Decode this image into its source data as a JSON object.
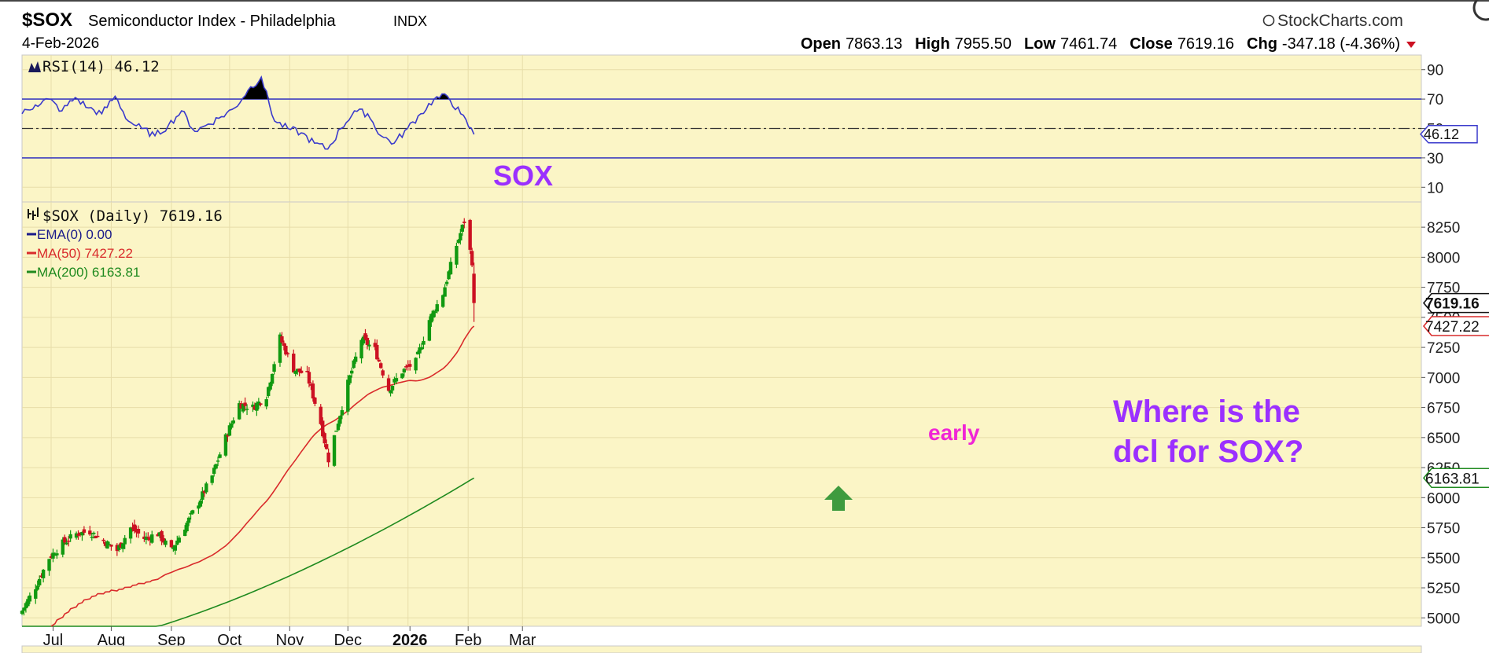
{
  "header": {
    "symbol": "$SOX",
    "name": "Semiconductor Index - Philadelphia",
    "exchange": "INDX",
    "date": "4-Feb-2026",
    "brand": "StockCharts.com",
    "open_label": "Open",
    "open": "7863.13",
    "high_label": "High",
    "high": "7955.50",
    "low_label": "Low",
    "low": "7461.74",
    "close_label": "Close",
    "close": "7619.16",
    "chg_label": "Chg",
    "chg": "-347.18 (-4.36%)"
  },
  "colors": {
    "panel_bg": "#FBF5C6",
    "up": "#119911",
    "down": "#CC1122",
    "ma50": "#D92B2B",
    "ma200": "#1F8A1F",
    "rsi_line": "#3A3ACC",
    "annotation": "#9B30FF",
    "early": "#F025D6",
    "arrow": "#3E9B3E"
  },
  "rsi_panel": {
    "legend": "RSI(14) 46.12",
    "current": "46.12",
    "levels": [
      70,
      30
    ],
    "label": "SOX",
    "ticks": [
      "90",
      "70",
      "50",
      "30",
      "10"
    ],
    "tick_values": [
      90,
      70,
      50,
      30,
      10
    ]
  },
  "price_panel": {
    "legend_main": "$SOX (Daily) 7619.16",
    "legend_ema": "EMA(0) 0.00",
    "legend_ma50": "MA(50) 7427.22",
    "legend_ma200": "MA(200) 6163.81",
    "tag_close": "7619.16",
    "tag_ma50": "7427.22",
    "tag_ma200": "6163.81",
    "ticks": [
      "8250",
      "8000",
      "7750",
      "7500",
      "7250",
      "7000",
      "6750",
      "6500",
      "6250",
      "6000",
      "5750",
      "5500",
      "5250",
      "5000"
    ],
    "tick_values": [
      8250,
      8000,
      7750,
      7500,
      7250,
      7000,
      6750,
      6500,
      6250,
      6000,
      5750,
      5500,
      5250,
      5000
    ],
    "annotation_question_line1": "Where is the",
    "annotation_question_line2": "dcl for SOX?",
    "annotation_early": "early"
  },
  "x_axis": {
    "labels": [
      "Jul",
      "Aug",
      "Sep",
      "Oct",
      "Nov",
      "Dec",
      "2026",
      "Feb",
      "Mar"
    ],
    "bold_label": "2026"
  },
  "chart_data": {
    "type": "candlestick",
    "title": "$SOX Semiconductor Index - Philadelphia INDX",
    "interval": "Daily",
    "ylim": [
      4930,
      8460
    ],
    "rsi_ylim": [
      0,
      100
    ],
    "anchors": [
      {
        "date": "2025-06-16",
        "close": 5060
      },
      {
        "date": "2025-06-23",
        "close": 5260
      },
      {
        "date": "2025-06-30",
        "close": 5500
      },
      {
        "date": "2025-07-07",
        "close": 5620
      },
      {
        "date": "2025-07-14",
        "close": 5700
      },
      {
        "date": "2025-07-21",
        "close": 5720
      },
      {
        "date": "2025-07-28",
        "close": 5640
      },
      {
        "date": "2025-08-04",
        "close": 5560
      },
      {
        "date": "2025-08-11",
        "close": 5750
      },
      {
        "date": "2025-08-18",
        "close": 5660
      },
      {
        "date": "2025-08-25",
        "close": 5700
      },
      {
        "date": "2025-09-01",
        "close": 5560
      },
      {
        "date": "2025-09-08",
        "close": 5760
      },
      {
        "date": "2025-09-15",
        "close": 5960
      },
      {
        "date": "2025-09-22",
        "close": 6180
      },
      {
        "date": "2025-09-29",
        "close": 6500
      },
      {
        "date": "2025-10-06",
        "close": 6780
      },
      {
        "date": "2025-10-13",
        "close": 6750
      },
      {
        "date": "2025-10-20",
        "close": 6850
      },
      {
        "date": "2025-10-27",
        "close": 7330
      },
      {
        "date": "2025-11-03",
        "close": 7070
      },
      {
        "date": "2025-11-10",
        "close": 7020
      },
      {
        "date": "2025-11-17",
        "close": 6620
      },
      {
        "date": "2025-11-21",
        "close": 6320
      },
      {
        "date": "2025-12-01",
        "close": 6950
      },
      {
        "date": "2025-12-08",
        "close": 7320
      },
      {
        "date": "2025-12-15",
        "close": 7230
      },
      {
        "date": "2025-12-22",
        "close": 6900
      },
      {
        "date": "2025-12-29",
        "close": 7050
      },
      {
        "date": "2026-01-05",
        "close": 7130
      },
      {
        "date": "2026-01-12",
        "close": 7480
      },
      {
        "date": "2026-01-19",
        "close": 7700
      },
      {
        "date": "2026-01-26",
        "close": 8100
      },
      {
        "date": "2026-01-30",
        "close": 8300
      },
      {
        "date": "2026-02-03",
        "close": 7966
      },
      {
        "date": "2026-02-04",
        "close": 7619.16
      }
    ],
    "last_bar": {
      "date": "2026-02-04",
      "open": 7863.13,
      "high": 7955.5,
      "low": 7461.74,
      "close": 7619.16
    },
    "series": [
      {
        "name": "$SOX (Daily)",
        "last": 7619.16
      },
      {
        "name": "MA(50)",
        "last": 7427.22,
        "start_date": "2025-07-01",
        "start_value": 4930
      },
      {
        "name": "MA(200)",
        "last": 6163.81,
        "start_date": "2025-06-16",
        "start_value": 4700
      },
      {
        "name": "RSI(14)",
        "last": 46.12,
        "values": [
          60,
          66,
          70,
          62,
          71,
          64,
          60,
          72,
          55,
          50,
          45,
          52,
          62,
          48,
          53,
          58,
          64,
          76,
          85,
          55,
          50,
          47,
          40,
          36,
          50,
          62,
          60,
          45,
          40,
          50,
          60,
          70,
          72,
          60,
          46
        ]
      }
    ],
    "x_labels": [
      "Jul",
      "Aug",
      "Sep",
      "Oct",
      "Nov",
      "Dec",
      "2026",
      "Feb",
      "Mar"
    ]
  }
}
